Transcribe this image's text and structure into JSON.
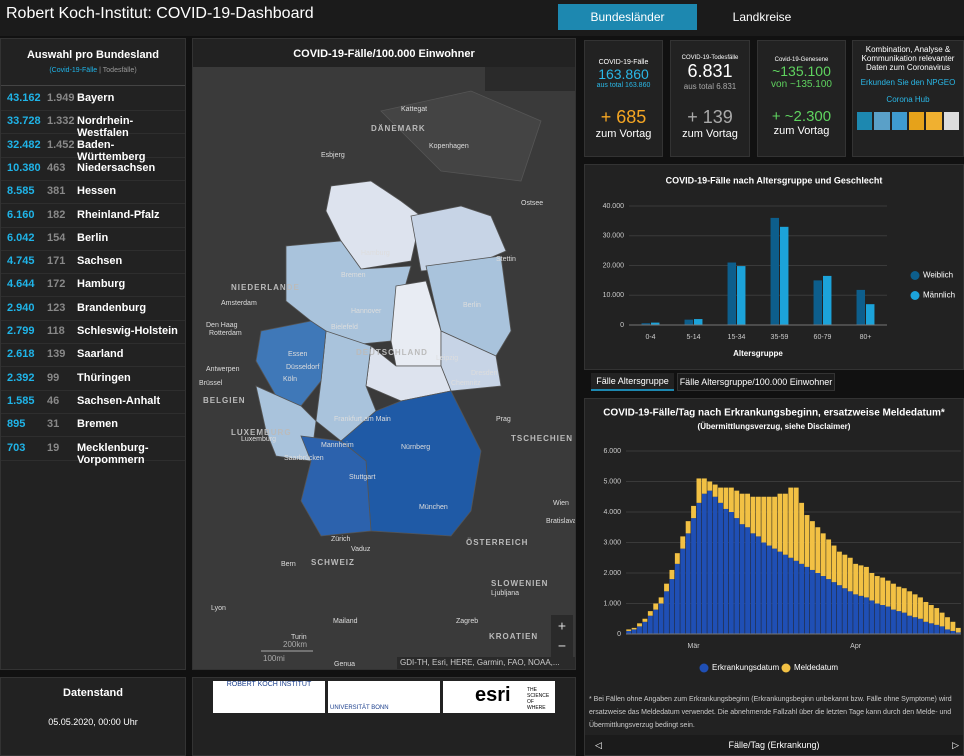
{
  "header": {
    "title": "Robert Koch-Institut: COVID-19-Dashboard",
    "tabs": [
      "Bundesländer",
      "Landkreise"
    ]
  },
  "states": {
    "title": "Auswahl pro Bundesland",
    "legend_cases": "(Covid-19-Fälle",
    "legend_deaths": "| Todesfälle)",
    "rows": [
      {
        "cases": "43.162",
        "deaths": "1.949",
        "name": "Bayern"
      },
      {
        "cases": "33.728",
        "deaths": "1.332",
        "name": "Nordrhein-Westfalen"
      },
      {
        "cases": "32.482",
        "deaths": "1.452",
        "name": "Baden-Württemberg"
      },
      {
        "cases": "10.380",
        "deaths": "463",
        "name": "Niedersachsen"
      },
      {
        "cases": "8.585",
        "deaths": "381",
        "name": "Hessen"
      },
      {
        "cases": "6.160",
        "deaths": "182",
        "name": "Rheinland-Pfalz"
      },
      {
        "cases": "6.042",
        "deaths": "154",
        "name": "Berlin"
      },
      {
        "cases": "4.745",
        "deaths": "171",
        "name": "Sachsen"
      },
      {
        "cases": "4.644",
        "deaths": "172",
        "name": "Hamburg"
      },
      {
        "cases": "2.940",
        "deaths": "123",
        "name": "Brandenburg"
      },
      {
        "cases": "2.799",
        "deaths": "118",
        "name": "Schleswig-Holstein"
      },
      {
        "cases": "2.618",
        "deaths": "139",
        "name": "Saarland"
      },
      {
        "cases": "2.392",
        "deaths": "99",
        "name": "Thüringen"
      },
      {
        "cases": "1.585",
        "deaths": "46",
        "name": "Sachsen-Anhalt"
      },
      {
        "cases": "895",
        "deaths": "31",
        "name": "Bremen"
      },
      {
        "cases": "703",
        "deaths": "19",
        "name": "Mecklenburg-Vorpommern"
      }
    ]
  },
  "kpis": [
    {
      "label": "COVID-19-Fälle",
      "value": "163.860",
      "total": "aus total 163.860",
      "delta": "+ 685",
      "delta_label": "zum Vortag"
    },
    {
      "label": "COVID-19-Todesfälle",
      "value": "6.831",
      "total": "aus total 6.831",
      "delta": "+ 139",
      "delta_label": "zum Vortag"
    },
    {
      "label": "Covid-19-Genesene",
      "value": "~135.100",
      "total": "von ~135.100",
      "delta": "+ ~2.300",
      "delta_label": "zum Vortag"
    }
  ],
  "info": {
    "text": "Kombination, Analyse & Kommunikation relevanter Daten zum Coronavirus",
    "link1": "Erkunden Sie den NPGEO",
    "link2": "Corona Hub"
  },
  "map": {
    "title": "COVID-19-Fälle/100.000 Einwohner",
    "labels": [
      "Kattegat",
      "DÄNEMARK",
      "Esbjerg",
      "Kopenhagen",
      "Ostsee",
      "Hamburg",
      "Bremen",
      "Stettin",
      "NIEDERLANDE",
      "Amsterdam",
      "Hannover",
      "Berlin",
      "Den Haag",
      "Rotterdam",
      "Bielefeld",
      "Essen",
      "Düsseldorf",
      "DEUTSCHLAND",
      "Leipzig",
      "Köln",
      "Dresden",
      "Chemnitz",
      "Antwerpen",
      "Brüssel",
      "BELGIEN",
      "Frankfurt am Main",
      "Prag",
      "LUXEMBURG",
      "Luxemburg",
      "Mannheim",
      "Nürnberg",
      "TSCHECHIEN",
      "Saarbrücken",
      "Stuttgart",
      "Wien",
      "Bratislava",
      "München",
      "Zürich",
      "ÖSTERREICH",
      "Vaduz",
      "Bern",
      "SCHWEIZ",
      "SLOWENIEN",
      "Ljubljana",
      "Zagreb",
      "KROATIEN",
      "Lyon",
      "Mailand",
      "Turin",
      "Genua"
    ],
    "scale_km": "200km",
    "scale_mi": "100mi",
    "attribution": "GDI-TH, Esri, HERE, Garmin, FAO, NOAA,..."
  },
  "age_tabs": [
    "Fälle Altersgruppe",
    "Fälle Altersgruppe/100.000 Einwohner"
  ],
  "datenstand": {
    "title": "Datenstand",
    "value": "05.05.2020, 00:00 Uhr"
  },
  "logos": {
    "rki": "ROBERT KOCH INSTITUT",
    "bonn": "UNIVERSITÄT BONN",
    "esri": "esri",
    "esri_tag": "THE SCIENCE OF WHERE"
  },
  "chart_data": [
    {
      "type": "bar",
      "title": "COVID-19-Fälle nach Altersgruppe und Geschlecht",
      "x_label": "Altersgruppe",
      "categories": [
        "0-4",
        "5-14",
        "15-34",
        "35-59",
        "60-79",
        "80+"
      ],
      "series": [
        {
          "name": "Weiblich",
          "color": "#0d5e8c",
          "values": [
            600,
            1800,
            21000,
            36000,
            15000,
            11800
          ]
        },
        {
          "name": "Männlich",
          "color": "#1ca3da",
          "values": [
            800,
            2000,
            19800,
            33000,
            16500,
            7000
          ]
        }
      ],
      "ylim": [
        0,
        40000
      ],
      "yticks": [
        0,
        {
          "value": 10000,
          "label": "10.000"
        },
        {
          "value": 20000,
          "label": "20.000"
        },
        {
          "value": 30000,
          "label": "30.000"
        },
        {
          "value": 40000,
          "label": "40.000"
        }
      ],
      "grid": true,
      "legend": "right"
    },
    {
      "type": "stacked_bar",
      "title": "COVID-19-Fälle/Tag nach Erkrankungsbeginn, ersatzweise Meldedatum*",
      "subtitle": "(Übermittlungsverzug, siehe Disclaimer)",
      "categories": [
        null,
        null,
        null,
        null,
        null,
        null,
        null,
        null,
        null,
        null,
        null,
        null,
        "Mär",
        null,
        null,
        null,
        null,
        null,
        null,
        null,
        null,
        null,
        null,
        null,
        null,
        null,
        null,
        null,
        null,
        null,
        null,
        null,
        null,
        null,
        null,
        null,
        null,
        null,
        null,
        null,
        null,
        null,
        "Apr",
        null,
        null,
        null,
        null,
        null,
        null,
        null,
        null,
        null,
        null,
        null,
        null,
        null,
        null,
        null,
        null,
        null,
        null,
        null
      ],
      "series": [
        {
          "name": "Erkrankungsdatum",
          "color": "#1f4fb5",
          "values": [
            100,
            150,
            250,
            400,
            600,
            800,
            1000,
            1400,
            1800,
            2300,
            2800,
            3300,
            3800,
            4300,
            4600,
            4700,
            4500,
            4300,
            4100,
            4000,
            3800,
            3600,
            3500,
            3300,
            3200,
            3000,
            2900,
            2800,
            2700,
            2600,
            2500,
            2400,
            2300,
            2200,
            2100,
            2000,
            1900,
            1800,
            1700,
            1600,
            1500,
            1400,
            1300,
            1250,
            1200,
            1100,
            1000,
            950,
            900,
            800,
            750,
            700,
            600,
            550,
            500,
            400,
            350,
            300,
            250,
            150,
            100,
            50
          ]
        },
        {
          "name": "Meldedatum",
          "color": "#f2c144",
          "values": [
            50,
            50,
            100,
            100,
            150,
            200,
            200,
            250,
            300,
            350,
            400,
            400,
            400,
            800,
            500,
            300,
            400,
            500,
            700,
            800,
            900,
            1000,
            1100,
            1200,
            1300,
            1500,
            1600,
            1700,
            1900,
            2000,
            2300,
            2400,
            2000,
            1700,
            1600,
            1500,
            1400,
            1300,
            1200,
            1100,
            1100,
            1100,
            1000,
            1000,
            1000,
            900,
            900,
            900,
            850,
            850,
            800,
            800,
            800,
            750,
            700,
            650,
            600,
            550,
            450,
            400,
            300,
            150
          ]
        }
      ],
      "ylim": [
        0,
        6000
      ],
      "yticks": [
        0,
        {
          "value": 1000,
          "label": "1.000"
        },
        {
          "value": 2000,
          "label": "2.000"
        },
        {
          "value": 3000,
          "label": "3.000"
        },
        {
          "value": 4000,
          "label": "4.000"
        },
        {
          "value": 5000,
          "label": "5.000"
        },
        {
          "value": 6000,
          "label": "6.000"
        }
      ],
      "grid": true,
      "legend": "bottom",
      "footnote": "* Bei Fällen ohne Angaben zum Erkrankungsbeginn (Erkrankungsbeginn unbekannt bzw. Fälle ohne Symptome) wird ersatzweise das Meldedatum verwendet. Die abnehmende Fallzahl über die letzten Tage kann durch den Melde- und Übermittlungsverzug bedingt sein.",
      "nav": "Fälle/Tag (Erkrankung)"
    }
  ]
}
